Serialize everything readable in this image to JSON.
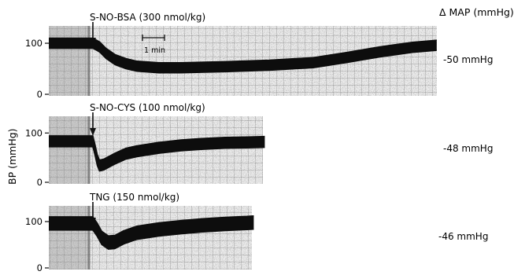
{
  "figure": {
    "header_label": "Δ MAP (mmHg)",
    "ylabel": "BP (mmHg)",
    "scale_bar_label": "1 min"
  },
  "chart_data": [
    {
      "type": "line",
      "title": "S-NO-BSA (300 nmol/kg)",
      "delta_map": "-50 mmHg",
      "ylabel": "BP (mmHg)",
      "yticks": [
        "0",
        "100"
      ],
      "ylim": [
        0,
        150
      ],
      "x_unit": "min",
      "xlim": [
        0,
        17.6
      ],
      "injection_time": 2.0,
      "series": [
        {
          "kind": "pressure_band",
          "x": [
            0,
            2.0,
            2.3,
            2.6,
            3.0,
            3.5,
            4.0,
            5.0,
            6.0,
            8.0,
            10.0,
            12.0,
            13.5,
            15.0,
            16.5,
            17.6
          ],
          "y": [
            100,
            100,
            93,
            80,
            68,
            60,
            55,
            52,
            52,
            54,
            57,
            62,
            72,
            83,
            92,
            96
          ],
          "band_width": 13
        }
      ]
    },
    {
      "type": "line",
      "title": "S-NO-CYS (100 nmol/kg)",
      "delta_map": "-48 mmHg",
      "ylabel": "BP (mmHg)",
      "yticks": [
        "0",
        "100"
      ],
      "ylim": [
        0,
        150
      ],
      "x_unit": "min",
      "xlim": [
        0,
        9.8
      ],
      "injection_time": 2.0,
      "series": [
        {
          "kind": "pressure_band",
          "x": [
            0,
            2.0,
            2.1,
            2.2,
            2.3,
            2.5,
            3.0,
            3.5,
            4.0,
            5.0,
            6.0,
            7.0,
            8.0,
            9.0,
            9.8
          ],
          "y": [
            83,
            83,
            65,
            45,
            34,
            36,
            48,
            58,
            63,
            70,
            75,
            78,
            80,
            81,
            82
          ],
          "band_width": 14
        }
      ]
    },
    {
      "type": "line",
      "title": "TNG (150 nmol/kg)",
      "delta_map": "-46 mmHg",
      "ylabel": "BP (mmHg)",
      "yticks": [
        "0",
        "100"
      ],
      "ylim": [
        0,
        150
      ],
      "x_unit": "min",
      "xlim": [
        0,
        9.3
      ],
      "injection_time": 2.0,
      "series": [
        {
          "kind": "pressure_band",
          "x": [
            0,
            2.0,
            2.2,
            2.4,
            2.7,
            3.0,
            3.4,
            4.0,
            5.0,
            6.0,
            7.0,
            8.0,
            9.0,
            9.3
          ],
          "y": [
            96,
            96,
            82,
            65,
            55,
            56,
            66,
            76,
            83,
            88,
            92,
            95,
            97,
            98
          ],
          "band_width": 17
        }
      ]
    }
  ]
}
